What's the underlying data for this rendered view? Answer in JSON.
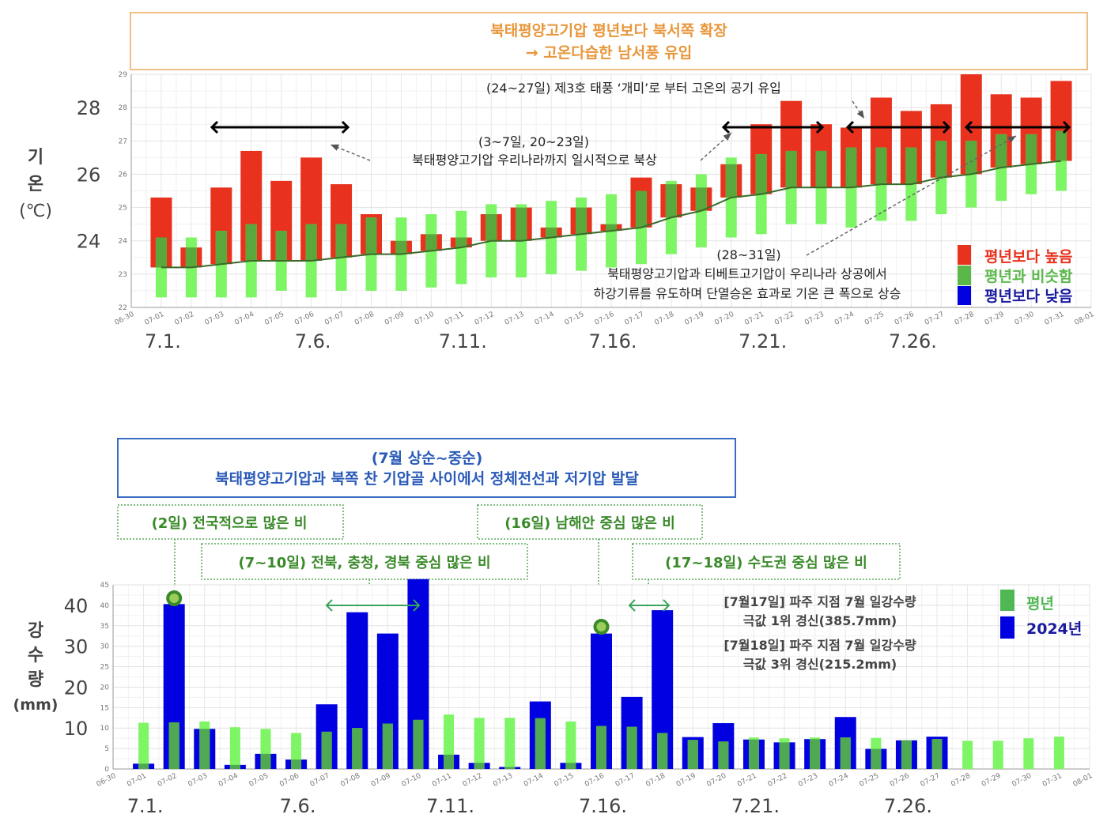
{
  "top_box": {
    "line1": "북태평양고기압 평년보다 북서쪽 확장",
    "line2": "→ 고온다습한 남서풍 유입",
    "color": "#e8963a"
  },
  "bottom_box": {
    "line1": "(7월 상순~중순)",
    "line2": "북태평양고기압과 북쪽 찬 기압골 사이에서 정체전선과 저기압 발달",
    "color": "#2a5ab8"
  },
  "colors": {
    "above": "#e8321e",
    "normal": "#7ef565",
    "normal_overlap": "#5aa83c",
    "below": "#0000e0",
    "normal_line": "#3a6a2a",
    "rain_2024": "#0000e0",
    "rain_normal": "#7ef565",
    "rain_overlap": "#4fa852"
  },
  "chart_data": [
    {
      "type": "bar",
      "ylabel": "기\n온\n(℃)",
      "ylabel_lines": [
        "기",
        "온",
        "(℃)"
      ],
      "ylim": [
        22,
        29
      ],
      "yticks": [
        22,
        23,
        24,
        25,
        26,
        27,
        28,
        29
      ],
      "ytick_big": [
        "28",
        "26",
        "24"
      ],
      "xtick_big": [
        "7.1.",
        "7.6.",
        "7.11.",
        "7.16.",
        "7.21.",
        "7.26."
      ],
      "grid": true,
      "x": [
        "06-30",
        "07-01",
        "07-02",
        "07-03",
        "07-04",
        "07-05",
        "07-06",
        "07-07",
        "07-08",
        "07-09",
        "07-10",
        "07-11",
        "07-12",
        "07-13",
        "07-14",
        "07-15",
        "07-16",
        "07-17",
        "07-18",
        "07-19",
        "07-20",
        "07-21",
        "07-22",
        "07-23",
        "07-24",
        "07-25",
        "07-26",
        "07-27",
        "07-28",
        "07-29",
        "07-30",
        "07-31",
        "08-01"
      ],
      "series": [
        {
          "name": "2024",
          "values": [
            null,
            25.3,
            23.8,
            25.6,
            26.7,
            25.8,
            26.5,
            25.7,
            24.8,
            24.0,
            24.2,
            24.1,
            24.8,
            25.0,
            24.4,
            25.0,
            24.5,
            25.9,
            25.7,
            25.6,
            26.3,
            27.5,
            28.2,
            27.5,
            27.4,
            28.3,
            27.9,
            28.1,
            29.0,
            28.4,
            28.3,
            28.8,
            null
          ]
        },
        {
          "name": "normal_mean",
          "values": [
            null,
            23.2,
            23.2,
            23.3,
            23.4,
            23.4,
            23.4,
            23.5,
            23.6,
            23.6,
            23.7,
            23.8,
            24.0,
            24.0,
            24.1,
            24.2,
            24.3,
            24.4,
            24.7,
            24.9,
            25.3,
            25.4,
            25.6,
            25.6,
            25.6,
            25.7,
            25.7,
            25.9,
            26.0,
            26.2,
            26.3,
            26.4,
            null
          ]
        },
        {
          "name": "normal_range_low",
          "values": [
            null,
            22.3,
            22.3,
            22.3,
            22.3,
            22.5,
            22.3,
            22.5,
            22.5,
            22.5,
            22.6,
            22.7,
            22.9,
            22.9,
            23.0,
            23.1,
            23.2,
            23.3,
            23.6,
            23.8,
            24.1,
            24.2,
            24.5,
            24.5,
            24.4,
            24.6,
            24.6,
            24.8,
            25.0,
            25.2,
            25.4,
            25.5,
            null
          ]
        },
        {
          "name": "normal_range_high",
          "values": [
            null,
            24.1,
            24.1,
            24.3,
            24.5,
            24.3,
            24.5,
            24.5,
            24.7,
            24.7,
            24.8,
            24.9,
            25.1,
            25.1,
            25.2,
            25.3,
            25.4,
            25.5,
            25.8,
            26.0,
            26.5,
            26.6,
            26.7,
            26.7,
            26.8,
            26.8,
            26.8,
            27.0,
            27.0,
            27.2,
            27.2,
            27.3,
            null
          ]
        }
      ],
      "legend": {
        "position": "bottom-right",
        "items": [
          {
            "label": "평년보다 높음",
            "color": "#e8321e"
          },
          {
            "label": "평년과 비슷함",
            "color": "#5ab84a"
          },
          {
            "label": "평년보다 낮음",
            "color": "#0000e0"
          }
        ]
      },
      "annotations": {
        "typhoon": "(24~27일) 제3호 태풍 ‘개미’로 부터 고온의 공기 유입",
        "north1": "(3~7일, 20~23일)",
        "north2": "북태평양고기압 우리나라까지 일시적으로 북상",
        "adiab1": "(28~31일)",
        "adiab2": "북태평양고기압과 티베트고기압이 우리나라 상공에서",
        "adiab3": "하강기류를 유도하며 단열승온 효과로 기온 큰 폭으로 상승"
      }
    },
    {
      "type": "bar",
      "ylabel_lines": [
        "강",
        "수",
        "량",
        "(mm)"
      ],
      "ylim": [
        0,
        45
      ],
      "yticks": [
        0,
        5,
        10,
        15,
        20,
        25,
        30,
        35,
        40,
        45
      ],
      "ytick_big": [
        "40",
        "30",
        "20",
        "10"
      ],
      "xtick_big": [
        "7.1.",
        "7.6.",
        "7.11.",
        "7.16.",
        "7.21.",
        "7.26."
      ],
      "grid": true,
      "x": [
        "06-30",
        "07-01",
        "07-02",
        "07-03",
        "07-04",
        "07-05",
        "07-06",
        "07-07",
        "07-08",
        "07-09",
        "07-10",
        "07-11",
        "07-12",
        "07-13",
        "07-14",
        "07-15",
        "07-16",
        "07-17",
        "07-18",
        "07-19",
        "07-20",
        "07-21",
        "07-22",
        "07-23",
        "07-24",
        "07-25",
        "07-26",
        "07-27",
        "07-28",
        "07-29",
        "07-30",
        "07-31",
        "08-01"
      ],
      "series": [
        {
          "name": "평년",
          "values": [
            null,
            11.3,
            11.4,
            11.6,
            10.2,
            9.8,
            8.8,
            9.1,
            10.0,
            11.1,
            12.0,
            13.3,
            12.5,
            12.5,
            12.4,
            11.6,
            10.5,
            10.3,
            8.8,
            7.1,
            6.7,
            7.7,
            7.5,
            7.7,
            7.7,
            7.6,
            7.0,
            7.3,
            6.9,
            6.9,
            7.5,
            7.9,
            null
          ]
        },
        {
          "name": "2024년",
          "values": [
            null,
            1.3,
            40.3,
            9.8,
            1.0,
            3.7,
            2.3,
            15.8,
            38.3,
            33.1,
            46.4,
            3.5,
            1.5,
            0.5,
            16.5,
            1.5,
            33.1,
            17.6,
            38.8,
            7.8,
            11.2,
            7.2,
            6.5,
            7.3,
            12.7,
            4.9,
            7.0,
            7.9,
            null,
            null,
            null,
            null,
            null
          ]
        }
      ],
      "legend": {
        "position": "top-right",
        "items": [
          {
            "label": "평년",
            "color": "#4fb852"
          },
          {
            "label": "2024년",
            "color": "#0000e0"
          }
        ]
      },
      "annotations": {
        "day2": "(2일) 전국적으로 많은 비",
        "day16": "(16일) 남해안 중심 많은 비",
        "day7_10": "(7~10일) 전북, 충청, 경북 중심 많은 비",
        "day17_18": "(17~18일) 수도권 중심 많은 비",
        "rec1a": "[7월17일] 파주 지점 7월 일강수량",
        "rec1b": "극값 1위 경신(385.7mm)",
        "rec2a": "[7월18일] 파주 지점 7월 일강수량",
        "rec2b": "극값 3위 경신(215.2mm)"
      }
    }
  ]
}
